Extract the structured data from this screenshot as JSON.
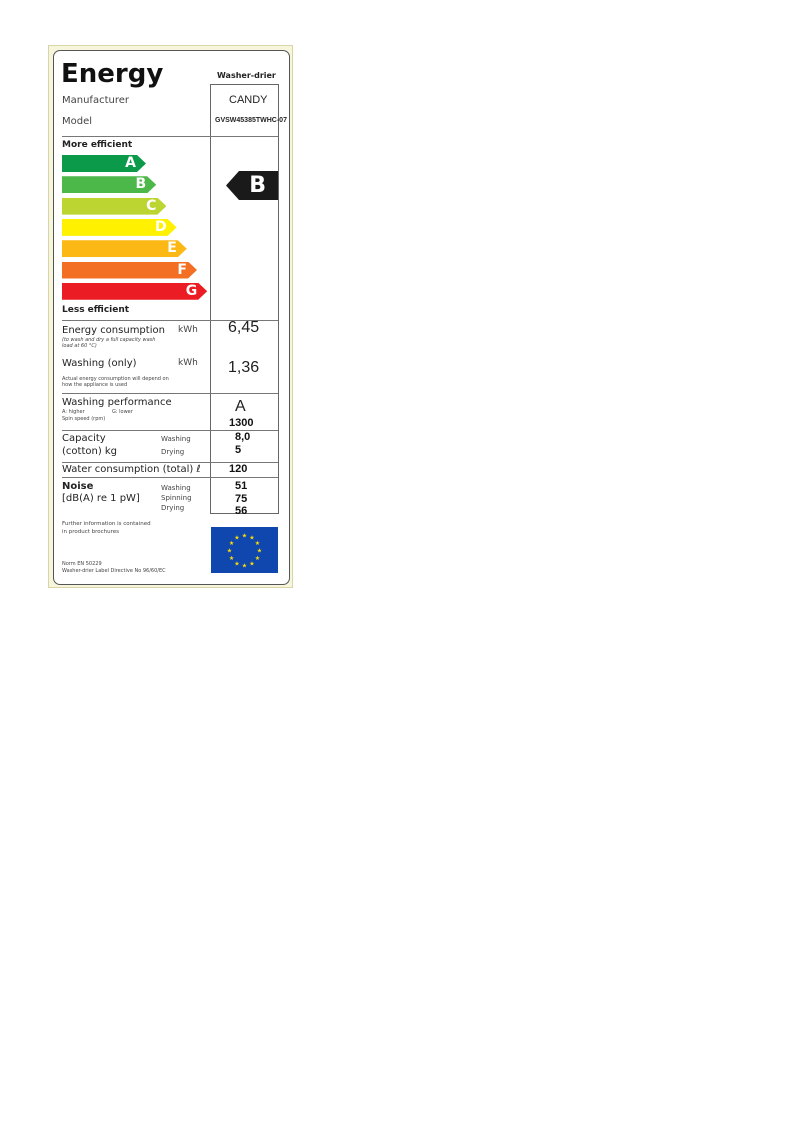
{
  "label": {
    "title": "Energy",
    "appliance_type": "Washer-drier",
    "manufacturer_label": "Manufacturer",
    "manufacturer": "CANDY",
    "model_label": "Model",
    "model": "GVSW45385TWHC-07",
    "more_efficient": "More efficient",
    "less_efficient": "Less efficient",
    "classes": [
      {
        "letter": "A",
        "color": "#0b9a49"
      },
      {
        "letter": "B",
        "color": "#4cb84a"
      },
      {
        "letter": "C",
        "color": "#bcd531"
      },
      {
        "letter": "D",
        "color": "#fff100"
      },
      {
        "letter": "E",
        "color": "#fcb815"
      },
      {
        "letter": "F",
        "color": "#f26f24"
      },
      {
        "letter": "G",
        "color": "#ec1c24"
      }
    ],
    "rating": "B",
    "energy_consumption": {
      "label": "Energy consumption",
      "unit": "kWh",
      "note": "(to wash and dry a full capacity wash load at 60 °C)",
      "value": "6,45"
    },
    "washing_only": {
      "label": "Washing (only)",
      "unit": "kWh",
      "note": "Actual energy consumption will depend on how the appliance is used",
      "value": "1,36"
    },
    "washing_performance": {
      "label": "Washing performance",
      "scale_high": "A: higher",
      "scale_low": "G: lower",
      "spin_label": "Spin speed (rpm)",
      "value": "A",
      "spin_value": "1300"
    },
    "capacity": {
      "label1": "Capacity",
      "label2": "(cotton) kg",
      "washing_label": "Washing",
      "drying_label": "Drying",
      "washing": "8,0",
      "drying": "5"
    },
    "water": {
      "label": "Water consumption (total)",
      "unit": "ℓ",
      "value": "120"
    },
    "noise": {
      "label": "Noise",
      "unit": "[dB(A) re 1 pW]",
      "washing_label": "Washing",
      "spinning_label": "Spinning",
      "drying_label": "Drying",
      "washing": "51",
      "spinning": "75",
      "drying": "56"
    },
    "further_info": "Further information is contained in product brochures",
    "norm": "Norm EN 50229",
    "directive": "Washer-drier Label Directive No 96/60/EC",
    "eu_flag_color": "#0f47af"
  }
}
